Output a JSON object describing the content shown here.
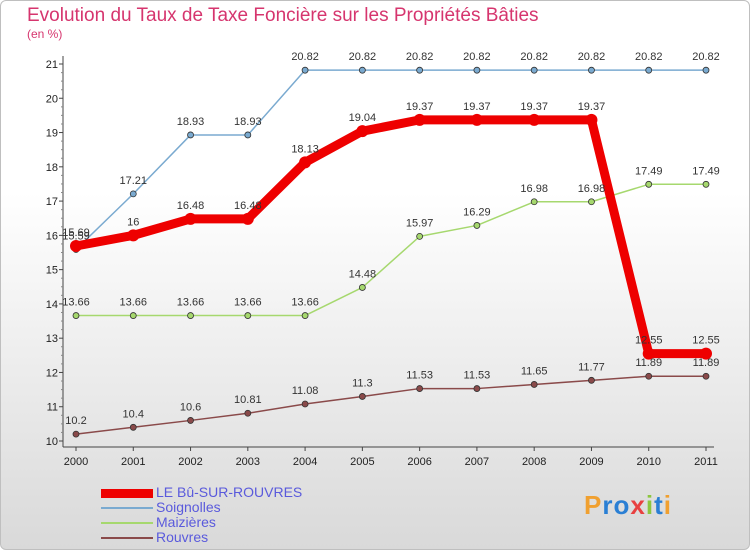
{
  "title": "Evolution du Taux de Taxe Foncière sur les Propriétés Bâties",
  "subtitle": "(en %)",
  "logo": {
    "text": "Proxiti",
    "letters": [
      "P",
      "r",
      "o",
      "x",
      "i",
      "t",
      "i"
    ],
    "colors": [
      "#f0a030",
      "#2a7fd4",
      "#2a7fd4",
      "#e84040",
      "#8cc63f",
      "#2a7fd4",
      "#f0a030"
    ]
  },
  "chart_data": {
    "type": "line",
    "title": "Evolution du Taux de Taxe Foncière sur les Propriétés Bâties",
    "ylabel": "(en %)",
    "xlabel": "",
    "x": [
      "2000",
      "2001",
      "2002",
      "2003",
      "2004",
      "2005",
      "2006",
      "2007",
      "2008",
      "2009",
      "2010",
      "2011"
    ],
    "ylim": [
      10,
      21
    ],
    "yticks": [
      10,
      11,
      12,
      13,
      14,
      15,
      16,
      17,
      18,
      19,
      20,
      21
    ],
    "grid": false,
    "series": [
      {
        "name": "LE Bû-SUR-ROUVRES",
        "color": "#ee0000",
        "values": [
          15.69,
          16,
          16.48,
          16.48,
          18.13,
          19.04,
          19.37,
          19.37,
          19.37,
          19.37,
          12.55,
          12.55
        ],
        "labels": [
          "15.69",
          "16",
          "16.48",
          "16.48",
          "18.13",
          "19.04",
          "19.37",
          "19.37",
          "19.37",
          "19.37",
          "12.55",
          "12.55"
        ]
      },
      {
        "name": "Soignolles",
        "color": "#7aaad0",
        "values": [
          15.59,
          17.21,
          18.93,
          18.93,
          20.82,
          20.82,
          20.82,
          20.82,
          20.82,
          20.82,
          20.82,
          20.82
        ],
        "labels": [
          "15.59",
          "17.21",
          "18.93",
          "18.93",
          "20.82",
          "20.82",
          "20.82",
          "20.82",
          "20.82",
          "20.82",
          "20.82",
          "20.82"
        ]
      },
      {
        "name": "Maizières",
        "color": "#a6d86e",
        "values": [
          13.66,
          13.66,
          13.66,
          13.66,
          13.66,
          14.48,
          15.97,
          16.29,
          16.98,
          16.98,
          17.49,
          17.49
        ],
        "labels": [
          "13.66",
          "13.66",
          "13.66",
          "13.66",
          "13.66",
          "14.48",
          "15.97",
          "16.29",
          "16.98",
          "16.98",
          "17.49",
          "17.49"
        ]
      },
      {
        "name": "Rouvres",
        "color": "#8a4a4a",
        "values": [
          10.2,
          10.4,
          10.6,
          10.81,
          11.08,
          11.3,
          11.53,
          11.53,
          11.65,
          11.77,
          11.89,
          11.89
        ],
        "labels": [
          "10.2",
          "10.4",
          "10.6",
          "10.81",
          "11.08",
          "11.3",
          "11.53",
          "11.53",
          "11.65",
          "11.77",
          "11.89",
          "11.89"
        ]
      }
    ]
  }
}
